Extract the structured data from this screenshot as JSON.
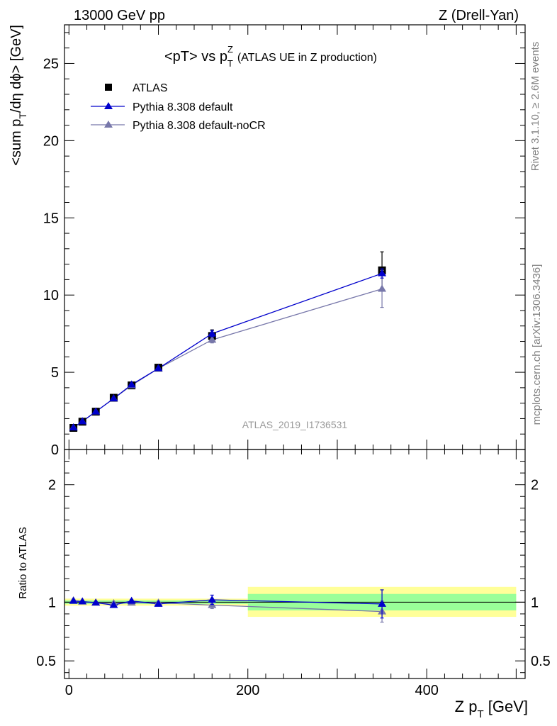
{
  "header": {
    "left": "13000 GeV pp",
    "right": "Z (Drell-Yan)"
  },
  "side_labels": {
    "rivet": "Rivet 3.1.10, ≥ 2.6M events",
    "mcplots": "mcplots.cern.ch [arXiv:1306.3436]"
  },
  "chart_data": [
    {
      "type": "scatter",
      "title": {
        "main": "<pT> vs p",
        "sup": "Z",
        "sub": "T",
        "suffix": "(ATLAS UE in Z production)"
      },
      "watermark": "ATLAS_2019_I1736531",
      "ylabel": {
        "part1": "<sum p",
        "sub1": "T",
        "part2": "/dη dϕ> [GeV]"
      },
      "ylim": [
        0,
        27.5
      ],
      "xlim": [
        -5,
        510
      ],
      "y_ticks": [
        0,
        5,
        10,
        15,
        20,
        25
      ],
      "y_tick_labels": [
        "0",
        "5",
        "10",
        "15",
        "20",
        "25"
      ],
      "legend_position": "top-left",
      "legend": [
        {
          "label": "ATLAS",
          "marker": "square",
          "color": "#000000"
        },
        {
          "label": "Pythia 8.308 default",
          "marker": "triangle",
          "color": "#0000cc"
        },
        {
          "label": "Pythia 8.308 default-noCR",
          "marker": "triangle",
          "color": "#7777aa"
        }
      ],
      "x": [
        5,
        15,
        30,
        50,
        70,
        100,
        160,
        350
      ],
      "series": [
        {
          "name": "ATLAS",
          "values": [
            1.4,
            1.8,
            2.45,
            3.35,
            4.15,
            5.3,
            7.35,
            11.6
          ],
          "errors": [
            0.05,
            0.05,
            0.07,
            0.1,
            0.12,
            0.15,
            0.4,
            1.2
          ]
        },
        {
          "name": "Pythia 8.308 default",
          "values": [
            1.42,
            1.82,
            2.45,
            3.3,
            4.2,
            5.25,
            7.5,
            11.4
          ],
          "errors": [
            0.03,
            0.03,
            0.04,
            0.05,
            0.06,
            0.08,
            0.2,
            0.3
          ]
        },
        {
          "name": "Pythia 8.308 default-noCR",
          "values": [
            1.43,
            1.82,
            2.45,
            3.3,
            4.15,
            5.25,
            7.1,
            10.4
          ],
          "errors": [
            0.03,
            0.03,
            0.04,
            0.05,
            0.06,
            0.08,
            0.2,
            1.2
          ]
        }
      ]
    },
    {
      "type": "scatter",
      "ylabel": "Ratio to ATLAS",
      "ylim": [
        0.35,
        2.3
      ],
      "xlim": [
        -5,
        510
      ],
      "y_ticks": [
        0.5,
        1,
        2
      ],
      "y_tick_labels": [
        "0.5",
        "1",
        "2"
      ],
      "x_ticks": [
        0,
        200,
        400
      ],
      "x_tick_labels": [
        "0",
        "200",
        "400"
      ],
      "xlabel": {
        "part1": "Z p",
        "sub": "T",
        "part2": " [GeV]"
      },
      "bands": [
        {
          "x0": -5,
          "x1": 200,
          "green": [
            0.985,
            1.015
          ],
          "yellow": [
            0.97,
            1.03
          ]
        },
        {
          "x0": 200,
          "x1": 500,
          "green": [
            0.93,
            1.07
          ],
          "yellow": [
            0.875,
            1.13
          ]
        }
      ],
      "colors": {
        "green": "#99ff99",
        "yellow": "#ffff99"
      },
      "x": [
        5,
        15,
        30,
        50,
        70,
        100,
        160,
        350
      ],
      "series": [
        {
          "name": "Pythia 8.308 default",
          "values": [
            1.01,
            1.005,
            0.995,
            0.975,
            1.01,
            0.985,
            1.02,
            0.985
          ],
          "errors": [
            0.01,
            0.01,
            0.01,
            0.012,
            0.012,
            0.015,
            0.04,
            0.12
          ]
        },
        {
          "name": "Pythia 8.308 default-noCR",
          "values": [
            1.015,
            1.005,
            0.995,
            0.99,
            0.995,
            0.995,
            0.975,
            0.92
          ],
          "errors": [
            0.01,
            0.01,
            0.01,
            0.012,
            0.012,
            0.015,
            0.03,
            0.09
          ]
        }
      ]
    }
  ]
}
